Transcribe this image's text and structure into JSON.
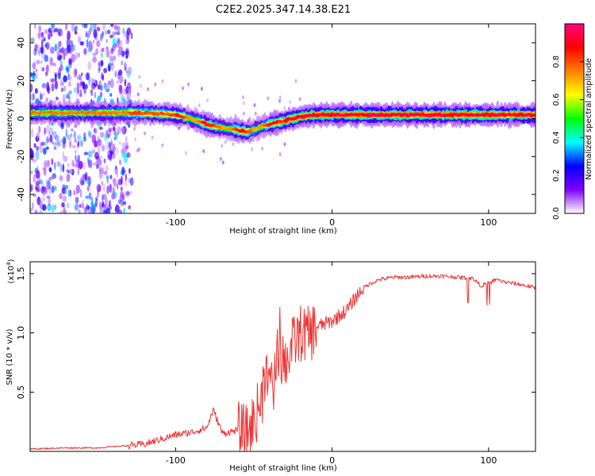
{
  "title": "C2E2.2025.347.14.38.E21",
  "chart_data": [
    {
      "type": "heatmap",
      "name": "spectrogram",
      "xlabel": "Height of straight line (km)",
      "ylabel": "Frequency (Hz)",
      "xlim": [
        -193,
        130
      ],
      "ylim": [
        -50,
        50
      ],
      "xticks": [
        -100,
        0,
        100
      ],
      "yticks": [
        -40,
        -20,
        0,
        20,
        40
      ],
      "ridge": {
        "x": [
          -193,
          -150,
          -130,
          -120,
          -100,
          -90,
          -80,
          -70,
          -60,
          -55,
          -50,
          -45,
          -40,
          -35,
          -30,
          -20,
          -10,
          0,
          20,
          50,
          80,
          100,
          130
        ],
        "freq": [
          3,
          3,
          3,
          3,
          2,
          0,
          -3,
          -5,
          -6,
          -7,
          -6,
          -4,
          -3,
          -2,
          -1,
          1,
          2,
          2,
          2,
          2,
          2,
          2,
          2
        ]
      },
      "colorbar": {
        "label": "Normalized spectral amplitude",
        "min": 0.0,
        "max": 1.0,
        "ticks": [
          0.0,
          0.2,
          0.4,
          0.6,
          0.8
        ],
        "tick_labels": [
          "0.0",
          "0.2",
          "0.4",
          "0.6",
          "0.8"
        ],
        "colors": [
          "#ffffff",
          "#8000ff",
          "#0000ff",
          "#00ffff",
          "#00ff00",
          "#ffff00",
          "#ff8000",
          "#ff0000",
          "#ff0080"
        ]
      }
    },
    {
      "type": "line",
      "name": "snr",
      "xlabel": "Height of straight line (km)",
      "ylabel": "SNR (10 * v/v)",
      "exponent_label": "(x10",
      "exponent_power": "4",
      "exponent_close": ")",
      "xlim": [
        -193,
        130
      ],
      "ylim": [
        0.0,
        1.6
      ],
      "xticks": [
        -100,
        0,
        100
      ],
      "yticks": [
        0.5,
        1.0,
        1.5
      ],
      "ytick_labels": [
        "0.5",
        "1.0",
        "1.5"
      ],
      "color": "#ee3333",
      "series": [
        {
          "name": "SNR",
          "x": [
            -193,
            -170,
            -150,
            -130,
            -120,
            -110,
            -100,
            -90,
            -80,
            -76,
            -70,
            -60,
            -55,
            -50,
            -45,
            -40,
            -37,
            -35,
            -30,
            -25,
            -20,
            -15,
            -10,
            0,
            5,
            10,
            15,
            20,
            25,
            30,
            40,
            50,
            60,
            70,
            80,
            90,
            95,
            100,
            105,
            110,
            115,
            120,
            130
          ],
          "y": [
            0.02,
            0.03,
            0.03,
            0.05,
            0.06,
            0.1,
            0.14,
            0.16,
            0.2,
            0.35,
            0.15,
            0.18,
            0.15,
            0.25,
            0.45,
            0.7,
            0.55,
            0.8,
            0.75,
            0.9,
            1.0,
            0.98,
            1.05,
            1.1,
            1.15,
            1.2,
            1.3,
            1.38,
            1.42,
            1.45,
            1.47,
            1.47,
            1.48,
            1.48,
            1.47,
            1.46,
            1.4,
            1.42,
            1.45,
            1.43,
            1.42,
            1.41,
            1.38
          ]
        }
      ]
    }
  ]
}
